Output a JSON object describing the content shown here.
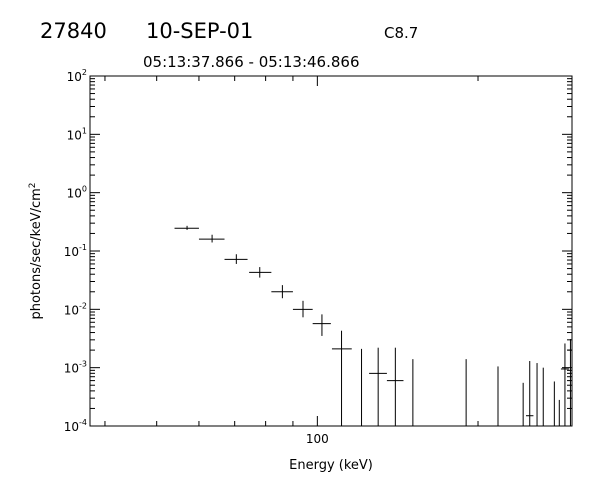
{
  "header": {
    "id": "27840",
    "date": "10-SEP-01",
    "class": "C8.7",
    "time_range": "05:13:37.866 - 05:13:46.866"
  },
  "chart_data": {
    "type": "scatter",
    "title": "",
    "xlabel": "Energy (keV)",
    "ylabel": "photons/sec/keV/cm",
    "ylabel_superscript": "2",
    "x_scale": "log",
    "y_scale": "log",
    "xlim": [
      37.5,
      300
    ],
    "ylim": [
      0.0001,
      100
    ],
    "x_tick_label": "100",
    "y_tick_labels": [
      {
        "base": "10",
        "exp": "2"
      },
      {
        "base": "10",
        "exp": "1"
      },
      {
        "base": "10",
        "exp": "0"
      },
      {
        "base": "10",
        "exp": "-1"
      },
      {
        "base": "10",
        "exp": "-2"
      },
      {
        "base": "10",
        "exp": "-3"
      },
      {
        "base": "10",
        "exp": "-4"
      }
    ],
    "points": [
      {
        "x": 57.0,
        "y": 0.245,
        "xlo": 54.0,
        "xhi": 60.0,
        "ylo": 0.23,
        "yhi": 0.27
      },
      {
        "x": 63.5,
        "y": 0.16,
        "xlo": 60.0,
        "xhi": 67.0,
        "ylo": 0.14,
        "yhi": 0.19
      },
      {
        "x": 70.5,
        "y": 0.072,
        "xlo": 67.0,
        "xhi": 74.0,
        "ylo": 0.06,
        "yhi": 0.088
      },
      {
        "x": 78.0,
        "y": 0.043,
        "xlo": 74.5,
        "xhi": 82.0,
        "ylo": 0.035,
        "yhi": 0.053
      },
      {
        "x": 86.0,
        "y": 0.02,
        "xlo": 82.0,
        "xhi": 90.0,
        "ylo": 0.0155,
        "yhi": 0.026
      },
      {
        "x": 94.0,
        "y": 0.01,
        "xlo": 90.0,
        "xhi": 98.0,
        "ylo": 0.0073,
        "yhi": 0.014
      },
      {
        "x": 102.0,
        "y": 0.0057,
        "xlo": 98.0,
        "xhi": 106.0,
        "ylo": 0.0035,
        "yhi": 0.0082
      },
      {
        "x": 111.0,
        "y": 0.0021,
        "xlo": 106.5,
        "xhi": 116.0,
        "ylo": 0.0001,
        "yhi": 0.0043
      },
      {
        "x": 121.0,
        "y": 0.0001,
        "ylo": 0.0001,
        "yhi": 0.0021
      },
      {
        "x": 130.0,
        "y": 0.0008,
        "xlo": 125.0,
        "xhi": 135.0,
        "ylo": 0.0001,
        "yhi": 0.0022
      },
      {
        "x": 140.0,
        "y": 0.0006,
        "xlo": 135.0,
        "xhi": 145.0,
        "ylo": 0.0001,
        "yhi": 0.0022
      },
      {
        "x": 151.0,
        "y": 0.0001,
        "ylo": 0.0001,
        "yhi": 0.0014
      },
      {
        "x": 190.0,
        "y": 0.0001,
        "ylo": 0.0001,
        "yhi": 0.0014
      },
      {
        "x": 218.0,
        "y": 0.0001,
        "ylo": 0.0001,
        "yhi": 0.00105
      },
      {
        "x": 243.0,
        "y": 0.0001,
        "ylo": 0.0001,
        "yhi": 0.00055
      },
      {
        "x": 250.0,
        "y": 0.00015,
        "xlo": 246.0,
        "xhi": 254.0,
        "ylo": 0.0001,
        "yhi": 0.0013
      },
      {
        "x": 258.0,
        "y": 0.0001,
        "ylo": 0.0001,
        "yhi": 0.0012
      },
      {
        "x": 265.0,
        "y": 0.0001,
        "ylo": 0.0001,
        "yhi": 0.001
      },
      {
        "x": 278.0,
        "y": 0.0001,
        "ylo": 0.0001,
        "yhi": 0.00058
      },
      {
        "x": 284.0,
        "y": 0.0001,
        "ylo": 0.0001,
        "yhi": 0.00028
      },
      {
        "x": 291.0,
        "y": 0.00095,
        "xlo": 286.0,
        "xhi": 296.0,
        "ylo": 0.0001,
        "yhi": 0.0026
      },
      {
        "x": 298.0,
        "y": 0.002,
        "xlo": 294.0,
        "xhi": 300.0,
        "ylo": 0.0001,
        "yhi": 0.0031
      }
    ]
  }
}
